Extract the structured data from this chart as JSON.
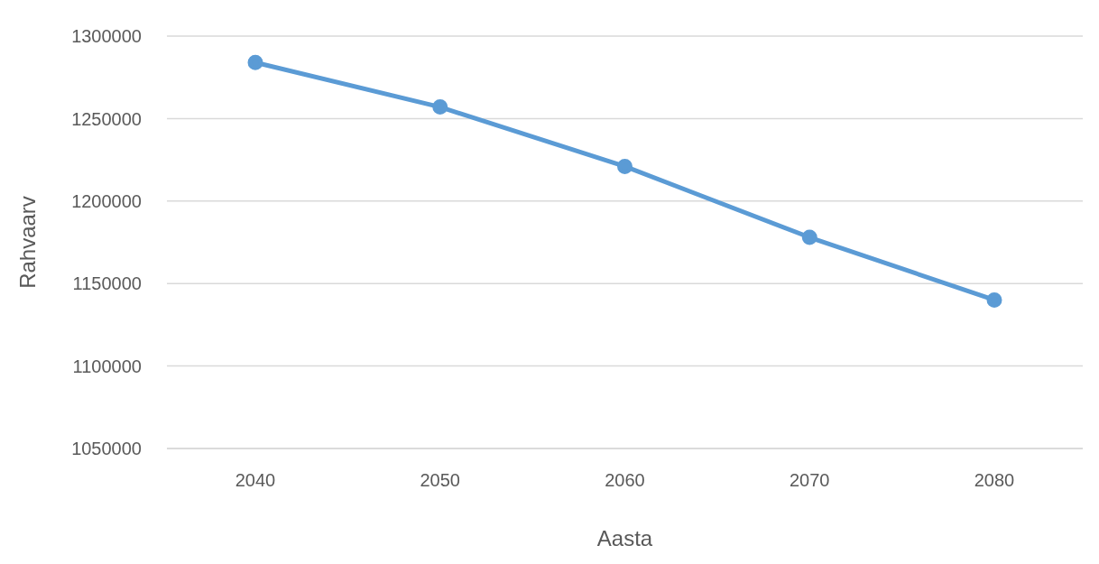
{
  "chart_data": {
    "type": "line",
    "xlabel": "Aasta",
    "ylabel": "Rahvaarv",
    "categories": [
      "2040",
      "2050",
      "2060",
      "2070",
      "2080"
    ],
    "series": [
      {
        "color": "#5b9bd5",
        "values": [
          1284000,
          1257000,
          1221000,
          1178000,
          1140000
        ]
      }
    ],
    "ylim": [
      1050000,
      1300000
    ],
    "yticks": [
      1050000,
      1100000,
      1150000,
      1200000,
      1250000,
      1300000
    ],
    "grid": "y",
    "marker": "circle",
    "legend": false
  }
}
